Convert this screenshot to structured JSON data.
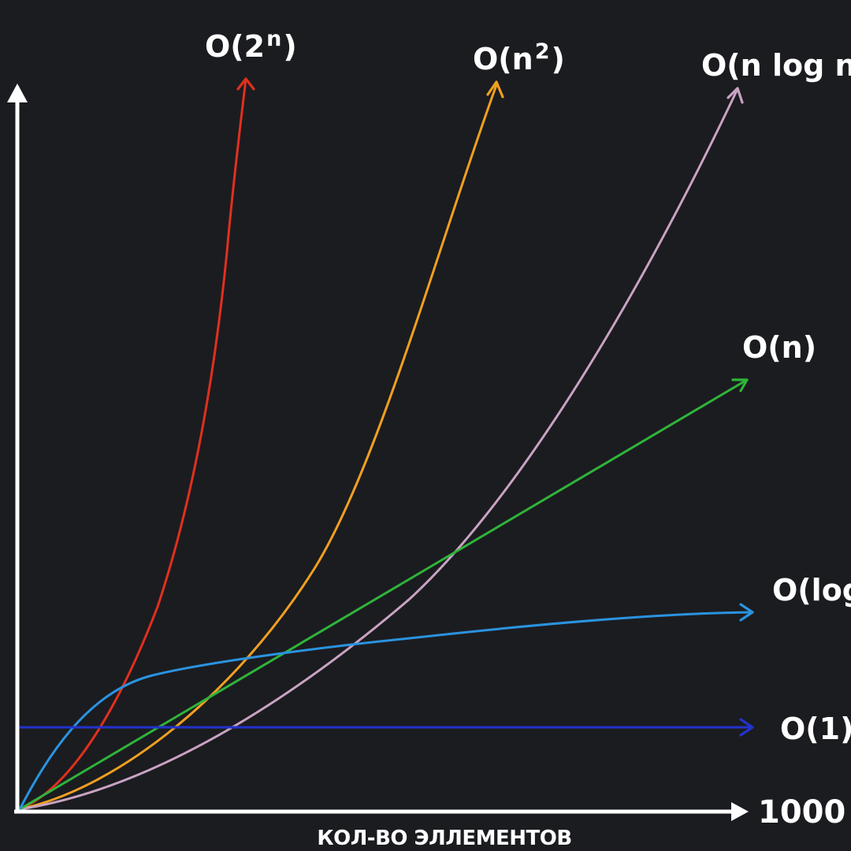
{
  "chart_data": {
    "type": "line",
    "xlabel": "КОЛ-ВО ЭЛЛЕМЕНТОВ",
    "x_max_label": "1000",
    "series": [
      {
        "name": "O(2ⁿ)",
        "label_base": "O(2",
        "label_sup": "n",
        "label_end": ")",
        "color": "#e0301e"
      },
      {
        "name": "O(n²)",
        "label_base": "O(n",
        "label_sup": "2",
        "label_end": ")",
        "color": "#f0a020"
      },
      {
        "name": "O(n log n)",
        "label_base": "O(n log n)",
        "label_sup": "",
        "label_end": "",
        "color": "#c9a3c3"
      },
      {
        "name": "O(n)",
        "label_base": "O(n)",
        "label_sup": "",
        "label_end": "",
        "color": "#2fb43a"
      },
      {
        "name": "O(log n)",
        "label_base": "O(log n)",
        "label_sup": "",
        "label_end": "",
        "color": "#2a93e0"
      },
      {
        "name": "O(1)",
        "label_base": "O(1)",
        "label_sup": "",
        "label_end": "",
        "color": "#2233cc"
      }
    ],
    "axis_color": "#ffffff",
    "grid": false,
    "legend": "curve-end labels"
  }
}
